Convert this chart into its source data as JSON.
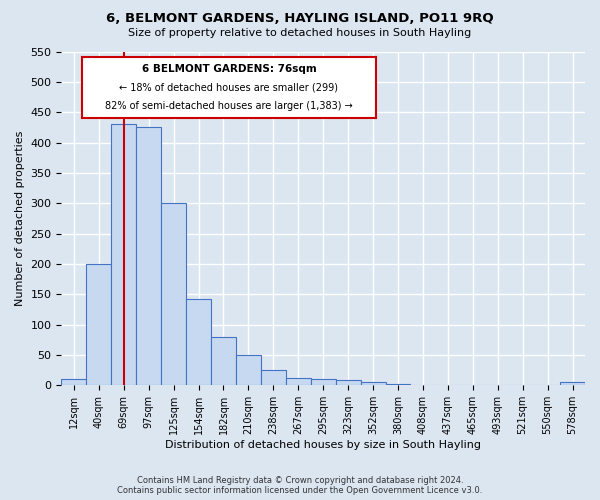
{
  "title": "6, BELMONT GARDENS, HAYLING ISLAND, PO11 9RQ",
  "subtitle": "Size of property relative to detached houses in South Hayling",
  "xlabel": "Distribution of detached houses by size in South Hayling",
  "ylabel": "Number of detached properties",
  "categories": [
    "12sqm",
    "40sqm",
    "69sqm",
    "97sqm",
    "125sqm",
    "154sqm",
    "182sqm",
    "210sqm",
    "238sqm",
    "267sqm",
    "295sqm",
    "323sqm",
    "352sqm",
    "380sqm",
    "408sqm",
    "437sqm",
    "465sqm",
    "493sqm",
    "521sqm",
    "550sqm",
    "578sqm"
  ],
  "values": [
    10,
    200,
    430,
    425,
    300,
    143,
    80,
    50,
    25,
    12,
    10,
    8,
    5,
    3,
    0,
    0,
    0,
    0,
    0,
    0,
    5
  ],
  "bar_color": "#c6d9f0",
  "bar_edge_color": "#4472c4",
  "bg_color": "#dce6f1",
  "grid_color": "#ffffff",
  "vline_x": 2,
  "vline_color": "#cc0000",
  "annotation_title": "6 BELMONT GARDENS: 76sqm",
  "annotation_line1": "← 18% of detached houses are smaller (299)",
  "annotation_line2": "82% of semi-detached houses are larger (1,383) →",
  "annotation_box_color": "#ffffff",
  "annotation_box_edge": "#cc0000",
  "footer_line1": "Contains HM Land Registry data © Crown copyright and database right 2024.",
  "footer_line2": "Contains public sector information licensed under the Open Government Licence v3.0.",
  "ylim": [
    0,
    550
  ],
  "yticks": [
    0,
    50,
    100,
    150,
    200,
    250,
    300,
    350,
    400,
    450,
    500,
    550
  ]
}
